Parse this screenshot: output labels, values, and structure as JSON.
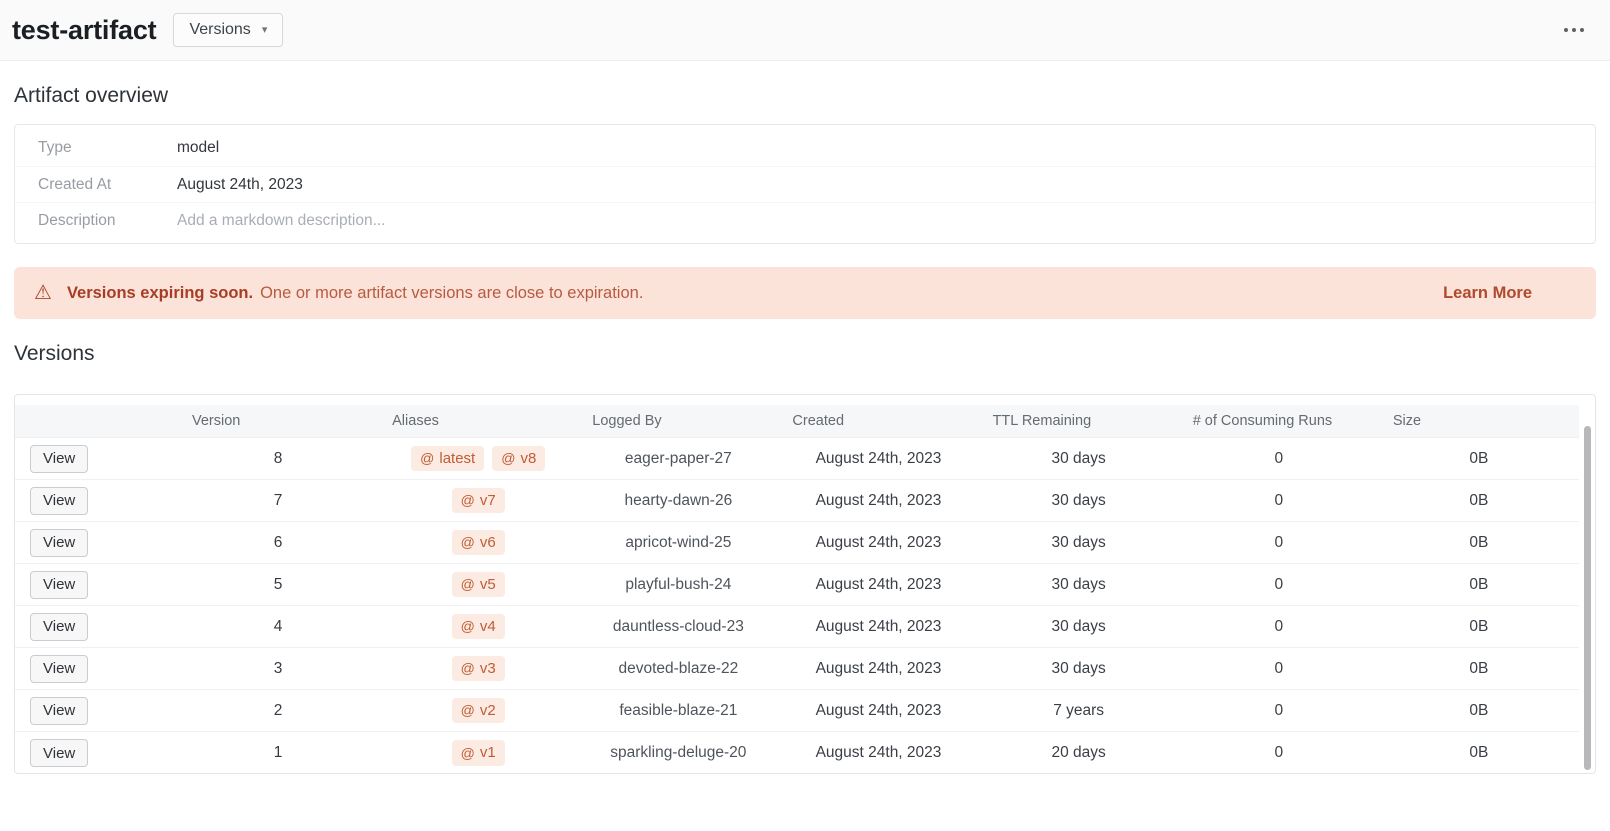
{
  "icons": {
    "at": "@",
    "warning": "⚠",
    "caret": "▾"
  },
  "colors": {
    "banner_bg": "#fbe3d9",
    "banner_text": "#a83d26",
    "alias_bg": "#fcebe2",
    "alias_text": "#c05c36"
  },
  "header": {
    "title": "test-artifact",
    "versions_button": "Versions"
  },
  "overview": {
    "section_title": "Artifact overview",
    "rows": [
      {
        "label": "Type",
        "value": "model"
      },
      {
        "label": "Created At",
        "value": "August 24th, 2023"
      },
      {
        "label": "Description",
        "placeholder": "Add a markdown description..."
      }
    ]
  },
  "banner": {
    "title": "Versions expiring soon.",
    "message": "One or more artifact versions are close to expiration.",
    "action": "Learn More"
  },
  "versions": {
    "section_title": "Versions",
    "table": {
      "view_label": "View",
      "columns": [
        "Version",
        "Aliases",
        "Logged By",
        "Created",
        "TTL Remaining",
        "# of Consuming Runs",
        "Size"
      ],
      "rows": [
        {
          "version": "8",
          "aliases": [
            "latest",
            "v8"
          ],
          "logged_by": "eager-paper-27",
          "created": "August 24th, 2023",
          "ttl": "30 days",
          "consuming_runs": "0",
          "size": "0B"
        },
        {
          "version": "7",
          "aliases": [
            "v7"
          ],
          "logged_by": "hearty-dawn-26",
          "created": "August 24th, 2023",
          "ttl": "30 days",
          "consuming_runs": "0",
          "size": "0B"
        },
        {
          "version": "6",
          "aliases": [
            "v6"
          ],
          "logged_by": "apricot-wind-25",
          "created": "August 24th, 2023",
          "ttl": "30 days",
          "consuming_runs": "0",
          "size": "0B"
        },
        {
          "version": "5",
          "aliases": [
            "v5"
          ],
          "logged_by": "playful-bush-24",
          "created": "August 24th, 2023",
          "ttl": "30 days",
          "consuming_runs": "0",
          "size": "0B"
        },
        {
          "version": "4",
          "aliases": [
            "v4"
          ],
          "logged_by": "dauntless-cloud-23",
          "created": "August 24th, 2023",
          "ttl": "30 days",
          "consuming_runs": "0",
          "size": "0B"
        },
        {
          "version": "3",
          "aliases": [
            "v3"
          ],
          "logged_by": "devoted-blaze-22",
          "created": "August 24th, 2023",
          "ttl": "30 days",
          "consuming_runs": "0",
          "size": "0B"
        },
        {
          "version": "2",
          "aliases": [
            "v2"
          ],
          "logged_by": "feasible-blaze-21",
          "created": "August 24th, 2023",
          "ttl": "7 years",
          "consuming_runs": "0",
          "size": "0B"
        },
        {
          "version": "1",
          "aliases": [
            "v1"
          ],
          "logged_by": "sparkling-deluge-20",
          "created": "August 24th, 2023",
          "ttl": "20 days",
          "consuming_runs": "0",
          "size": "0B"
        }
      ]
    }
  }
}
